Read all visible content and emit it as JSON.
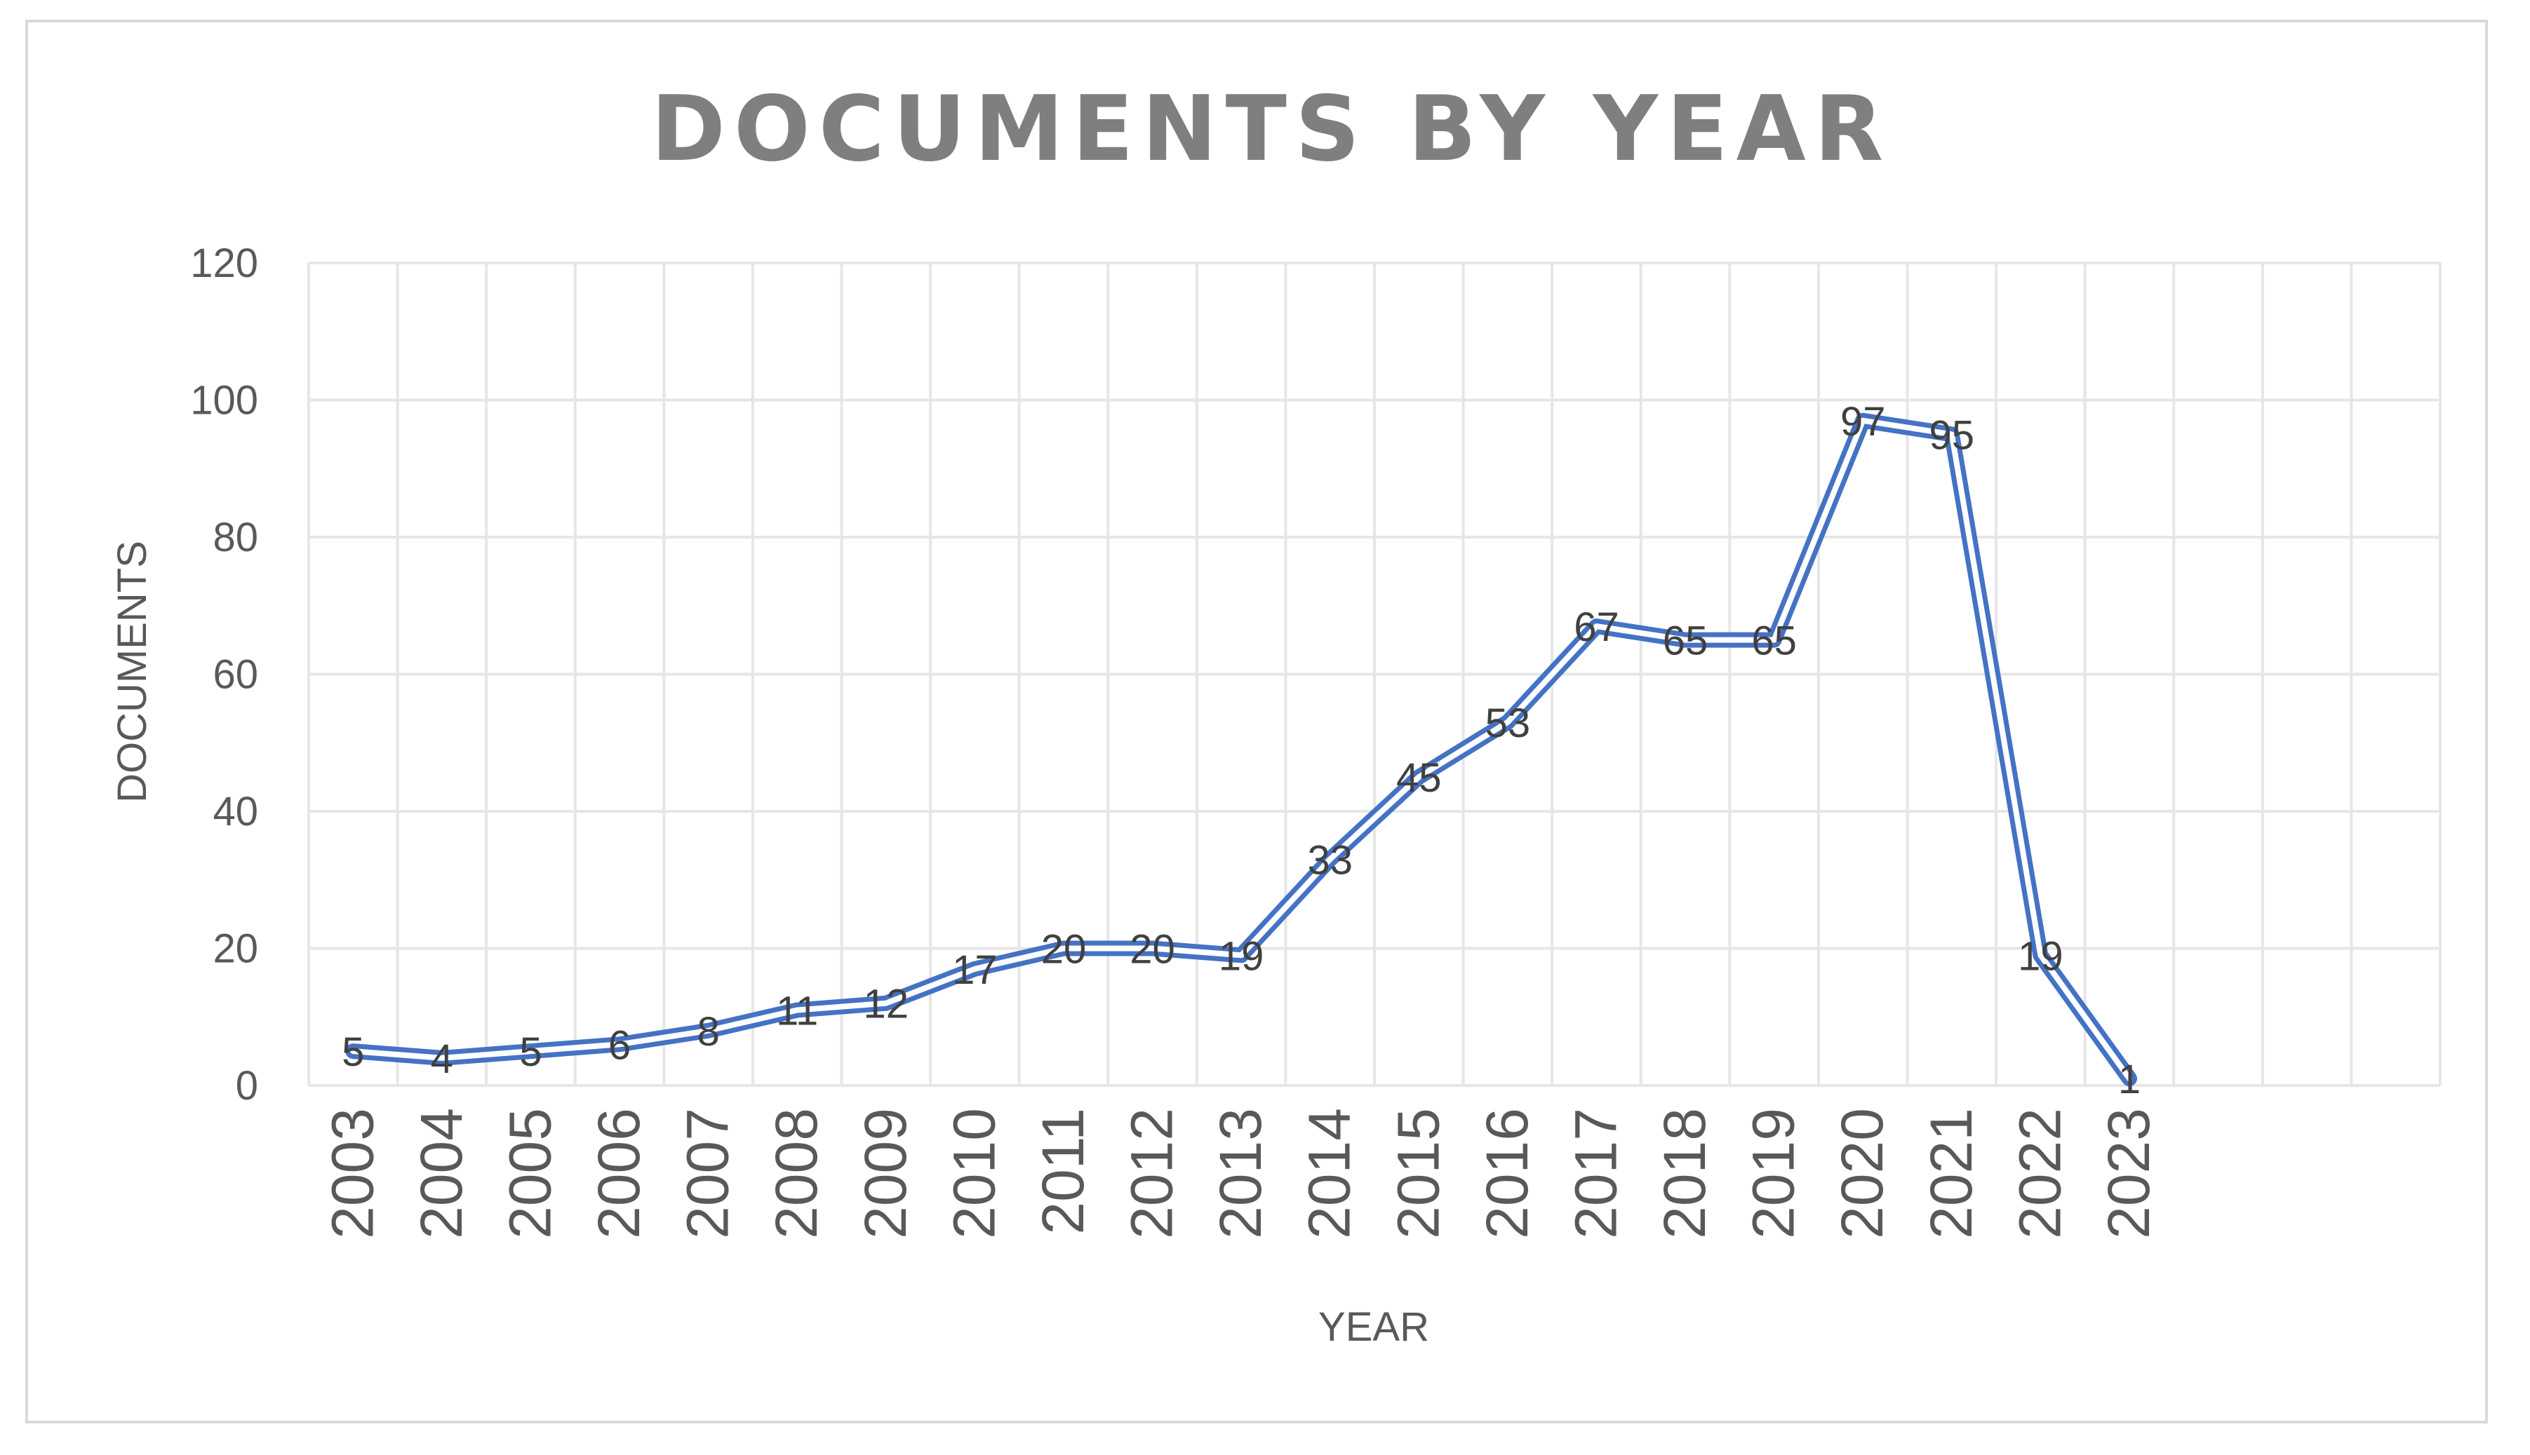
{
  "chart_data": {
    "type": "line",
    "title": "DOCUMENTS BY YEAR",
    "xlabel": "YEAR",
    "ylabel": "DOCUMENTS",
    "categories": [
      "2003",
      "2004",
      "2005",
      "2006",
      "2007",
      "2008",
      "2009",
      "2010",
      "2011",
      "2012",
      "2013",
      "2014",
      "2015",
      "2016",
      "2017",
      "2018",
      "2019",
      "2020",
      "2021",
      "2022",
      "2023"
    ],
    "values": [
      5,
      4,
      5,
      6,
      8,
      11,
      12,
      17,
      20,
      20,
      19,
      33,
      45,
      53,
      67,
      65,
      65,
      97,
      95,
      19,
      1
    ],
    "data_labels": [
      "5",
      "4",
      "5",
      "6",
      "8",
      "11",
      "12",
      "17",
      "20",
      "20",
      "19",
      "33",
      "45",
      "53",
      "67",
      "65",
      "65",
      "97",
      "95",
      "19",
      "1"
    ],
    "yticks": [
      "0",
      "20",
      "40",
      "60",
      "80",
      "100",
      "120"
    ],
    "ylim": [
      0,
      120
    ],
    "x_slots": 24,
    "grid": true,
    "legend": "none",
    "colors": {
      "line": "#4472c4",
      "line_inner": "#ffffff",
      "grid": "#e6e6e6",
      "frame": "#d9d9d9"
    }
  }
}
